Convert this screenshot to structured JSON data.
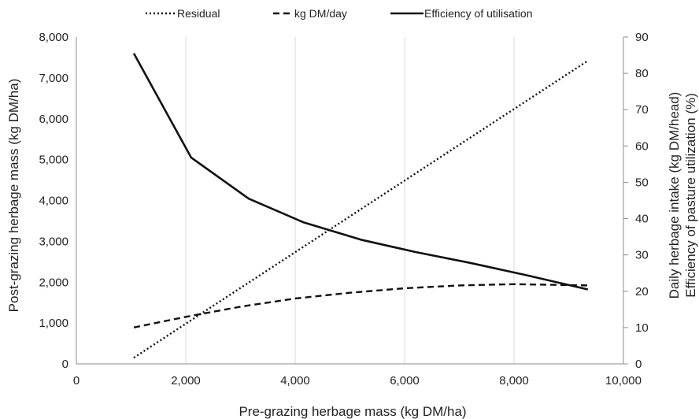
{
  "chart_data": {
    "type": "line",
    "xlabel": "Pre-grazing herbage mass (kg DM/ha)",
    "ylabel_left": "Post-grazing herbage mass (kg DM/ha)",
    "ylabel_right_1": "Daily herbage intake (kg DM/head)",
    "ylabel_right_2": "Efficiency of pasture utilization (%)",
    "xlim": [
      0,
      10000
    ],
    "ylim_left": [
      0,
      8000
    ],
    "ylim_right": [
      0,
      90
    ],
    "x_ticks": [
      0,
      2000,
      4000,
      6000,
      8000,
      10000
    ],
    "x_tick_labels": [
      "0",
      "2,000",
      "4,000",
      "6,000",
      "8,000",
      "10,000"
    ],
    "y_left_ticks": [
      0,
      1000,
      2000,
      3000,
      4000,
      5000,
      6000,
      7000,
      8000
    ],
    "y_left_tick_labels": [
      "0",
      "1,000",
      "2,000",
      "3,000",
      "4,000",
      "5,000",
      "6,000",
      "7,000",
      "8,000"
    ],
    "y_right_ticks": [
      0,
      10,
      20,
      30,
      40,
      50,
      60,
      70,
      80,
      90
    ],
    "y_right_tick_labels": [
      "0",
      "10",
      "20",
      "30",
      "40",
      "50",
      "60",
      "70",
      "80",
      "90"
    ],
    "grid": "vertical",
    "legend_position": "top",
    "series": [
      {
        "name": "Residual",
        "axis": "left",
        "style": "dotted",
        "color": "#111111",
        "x": [
          1050,
          9350
        ],
        "y": [
          150,
          7420
        ]
      },
      {
        "name": "kg DM/day",
        "axis": "left",
        "style": "dashed",
        "color": "#111111",
        "x": [
          1050,
          2000,
          3000,
          4000,
          5000,
          6000,
          7000,
          8000,
          9350
        ],
        "y": [
          890,
          1150,
          1400,
          1600,
          1740,
          1850,
          1920,
          1950,
          1920
        ]
      },
      {
        "name": "Efficiency of utilisation",
        "axis": "right",
        "style": "solid",
        "color": "#111111",
        "x": [
          1050,
          2100,
          3150,
          4150,
          5200,
          6200,
          7200,
          8200,
          9350
        ],
        "y": [
          85.5,
          56.8,
          45.5,
          39,
          34.2,
          30.8,
          27.8,
          24.5,
          20.5
        ]
      }
    ]
  }
}
